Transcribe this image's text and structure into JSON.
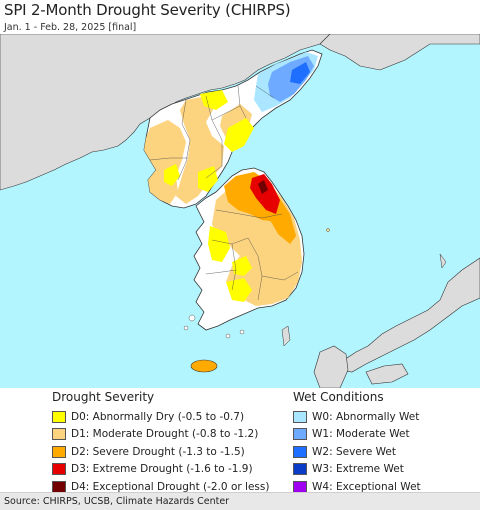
{
  "title": "SPI 2-Month Drought Severity (CHIRPS)",
  "subtitle": "Jan. 1 - Feb. 28, 2025 [final]",
  "colors": {
    "water": "#b3f5ff",
    "land_outside": "#dcdcdc",
    "land_normal": "#ffffff",
    "border": "#333333"
  },
  "legend": {
    "drought": {
      "heading": "Drought Severity",
      "items": [
        {
          "label": "D0: Abnormally Dry (-0.5 to -0.7)",
          "color": "#ffff00"
        },
        {
          "label": "D1: Moderate Drought (-0.8 to -1.2)",
          "color": "#fcd37f"
        },
        {
          "label": "D2: Severe Drought (-1.3 to -1.5)",
          "color": "#ffaa00"
        },
        {
          "label": "D3: Extreme Drought (-1.6 to -1.9)",
          "color": "#e60000"
        },
        {
          "label": "D4: Exceptional Drought (-2.0 or less)",
          "color": "#730000"
        }
      ]
    },
    "wet": {
      "heading": "Wet Conditions",
      "items": [
        {
          "label": "W0: Abnormally Wet",
          "color": "#aae6ff"
        },
        {
          "label": "W1: Moderate Wet",
          "color": "#6eaaff"
        },
        {
          "label": "W2: Severe Wet",
          "color": "#1e6eff"
        },
        {
          "label": "W3: Extreme Wet",
          "color": "#0a3cc8"
        },
        {
          "label": "W4: Exceptional Wet",
          "color": "#a000f0"
        }
      ]
    }
  },
  "source": "Source: CHIRPS, UCSB, Climate Hazards Center"
}
